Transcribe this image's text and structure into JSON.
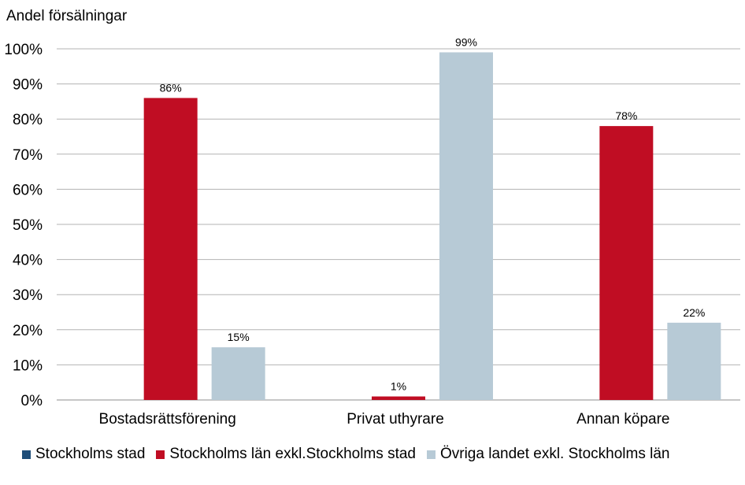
{
  "chart_data": {
    "type": "bar",
    "title": "",
    "ylabel": "Andel försälningar",
    "xlabel": "",
    "ylim": [
      0,
      100
    ],
    "yticks": [
      0,
      10,
      20,
      30,
      40,
      50,
      60,
      70,
      80,
      90,
      100
    ],
    "ytick_labels": [
      "0%",
      "10%",
      "20%",
      "30%",
      "40%",
      "50%",
      "60%",
      "70%",
      "80%",
      "90%",
      "100%"
    ],
    "categories": [
      "Bostadsrättsförening",
      "Privat uthyrare",
      "Annan köpare"
    ],
    "series": [
      {
        "name": "Stockholms stad",
        "color": "#1f4e79",
        "values": [
          0,
          0,
          0
        ],
        "labels": [
          "",
          "",
          ""
        ]
      },
      {
        "name": "Stockholms län exkl.Stockholms stad",
        "color": "#c00d23",
        "values": [
          86,
          1,
          78
        ],
        "labels": [
          "86%",
          "1%",
          "78%"
        ]
      },
      {
        "name": "Övriga landet exkl. Stockholms län",
        "color": "#b7cad6",
        "values": [
          15,
          99,
          22
        ],
        "labels": [
          "15%",
          "99%",
          "22%"
        ]
      }
    ],
    "grid": true,
    "legend_position": "bottom"
  }
}
